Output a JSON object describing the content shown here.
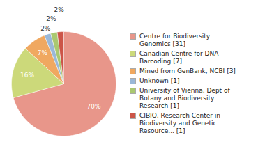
{
  "chart_data": {
    "type": "pie",
    "categories": [
      "Centre for Biodiversity\nGenomics [31]",
      "Canadian Centre for DNA\nBarcoding [7]",
      "Mined from GenBank, NCBI [3]",
      "Unknown [1]",
      "University of Vienna, Dept of\nBotany and Biodiversity\nResearch [1]",
      "CIBIO, Research Center in\nBiodiversity and Genetic\nResource... [1]"
    ],
    "values": [
      70,
      16,
      7,
      2,
      2,
      2
    ],
    "value_labels": [
      "70%",
      "16%",
      "7%",
      "2%",
      "2%",
      "2%"
    ],
    "colors": [
      "#e8968a",
      "#ccd97a",
      "#f0a860",
      "#9ab8d8",
      "#aac870",
      "#cc5548"
    ],
    "data_labels": true,
    "legend": "right"
  }
}
